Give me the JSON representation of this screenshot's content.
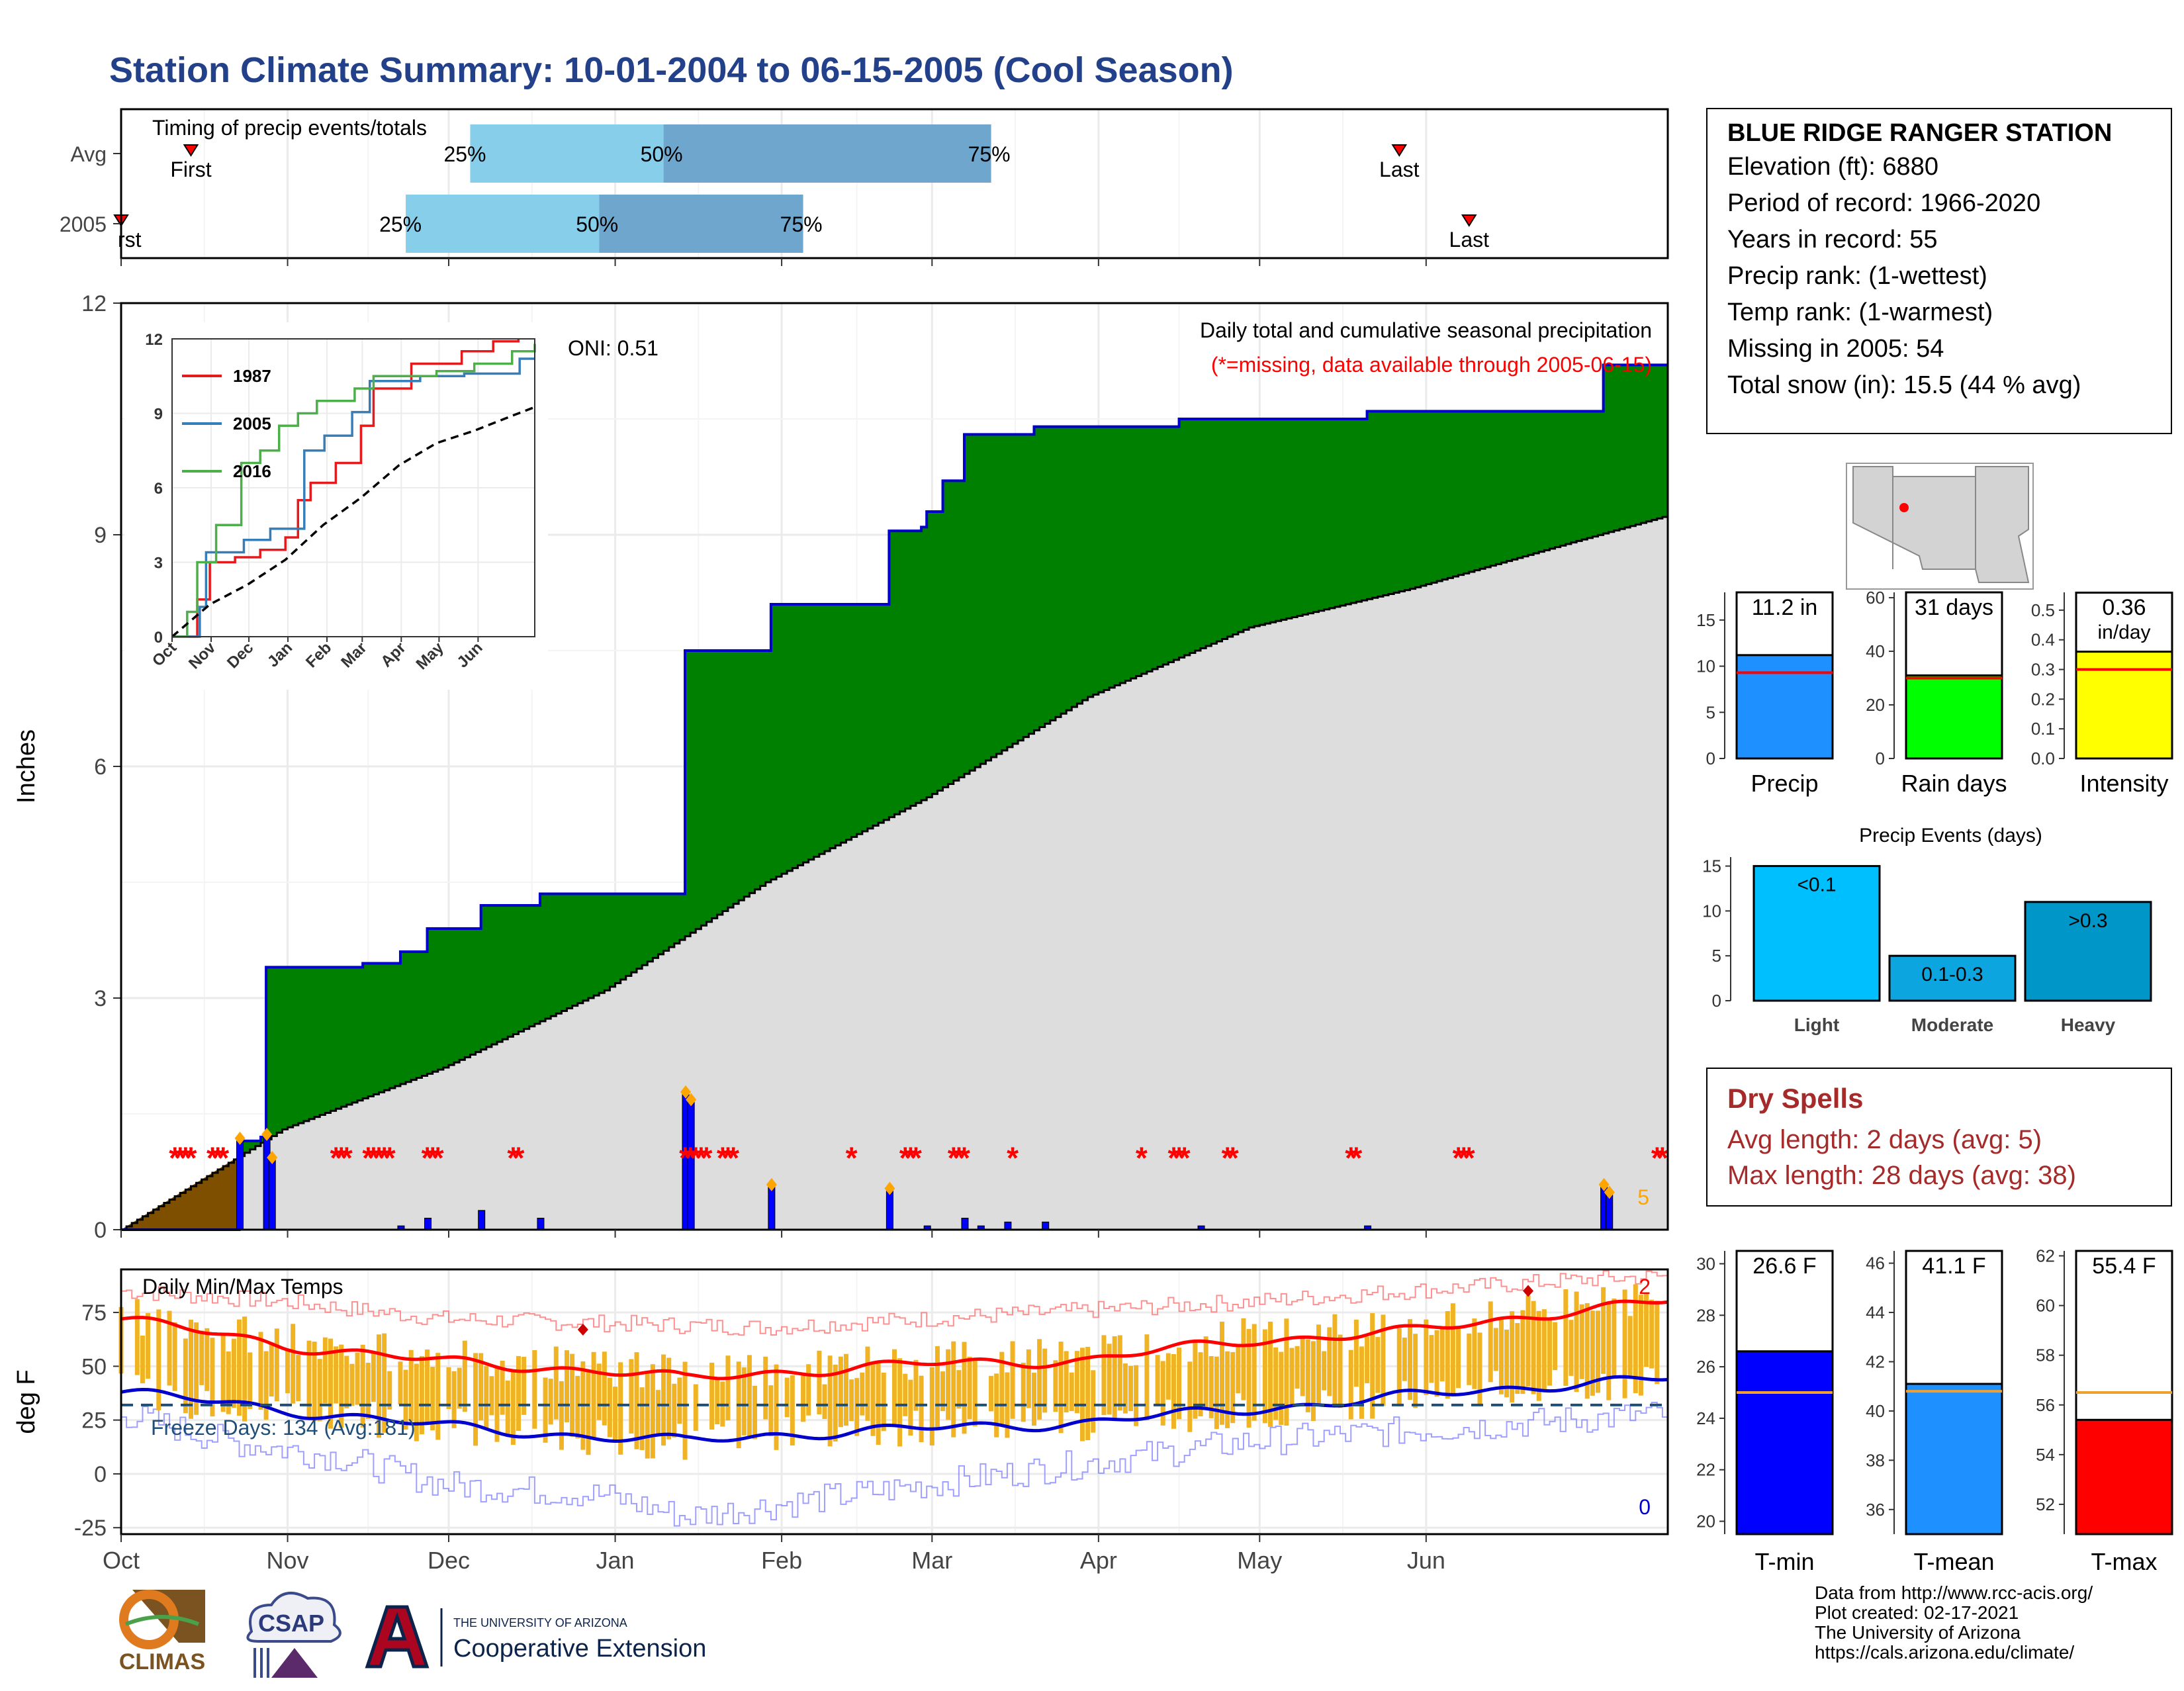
{
  "title": "Station Climate Summary: 10-01-2004 to 06-15-2005 (Cool Season)",
  "station": {
    "name": "BLUE RIDGE RANGER STATION",
    "elevation": "Elevation (ft): 6880",
    "period": "Period of record: 1966-2020",
    "years": "Years in record: 55",
    "precip_rank": "Precip rank:  (1-wettest)",
    "temp_rank": "Temp rank:  (1-warmest)",
    "missing": "Missing in 2005: 54",
    "snow": "Total snow (in): 15.5 (44 % avg)"
  },
  "dry_spells": {
    "title": "Dry Spells",
    "avg": "Avg length: 2 days (avg: 5)",
    "max": "Max length: 28 days (avg: 38)"
  },
  "credits": {
    "line1": "Data from http://www.rcc-acis.org/",
    "line2": "Plot created: 02-17-2021",
    "line3": "The University of Arizona",
    "line4": "https://cals.arizona.edu/climate/"
  },
  "logos": {
    "climas": "CLIMAS",
    "csap": "CSAP",
    "ua_small": "THE UNIVERSITY OF ARIZONA",
    "ua_big": "Cooperative Extension"
  },
  "chart_data": [
    {
      "id": "timing",
      "type": "bar",
      "title": "Timing of precip events/totals",
      "rows": [
        "Avg",
        "2005"
      ],
      "avg": {
        "first": "Oct 14",
        "q25": "Dec 5",
        "q50": "Jan 10",
        "q75": "Mar 12",
        "last": "May 27"
      },
      "y2005": {
        "first": "Oct 1",
        "q25": "Nov 23",
        "q50": "Dec 29",
        "q75": "Feb 5",
        "last": "Jun 9"
      },
      "labels": {
        "first": "First",
        "last": "Last",
        "first_cut": "rst",
        "q25": "25%",
        "q50": "50%",
        "q75": "75%"
      },
      "colors": {
        "light": "#87ceeb",
        "dark": "#6fa6cd",
        "marker": "#ff0000"
      }
    },
    {
      "id": "precip",
      "type": "area",
      "ylabel": "Inches",
      "ylim": [
        0,
        12
      ],
      "yticks": [
        0,
        3,
        6,
        9,
        12
      ],
      "x_months": [
        "Oct",
        "Nov",
        "Dec",
        "Jan",
        "Feb",
        "Mar",
        "Apr",
        "May",
        "Jun"
      ],
      "annotation": "Daily total and cumulative seasonal precipitation",
      "missing_note": "(*=missing, data available through 2005-06-15)",
      "oni": "ONI: 0.51",
      "corner_count": "5",
      "cumulative_2005": [
        [
          0,
          0
        ],
        [
          21,
          0
        ],
        [
          22,
          1.15
        ],
        [
          26,
          1.2
        ],
        [
          27,
          3.4
        ],
        [
          45,
          3.45
        ],
        [
          52,
          3.6
        ],
        [
          57,
          3.9
        ],
        [
          67,
          4.2
        ],
        [
          78,
          4.35
        ],
        [
          104,
          4.35
        ],
        [
          105,
          7.5
        ],
        [
          120,
          7.5
        ],
        [
          121,
          8.1
        ],
        [
          142,
          8.1
        ],
        [
          143,
          9.05
        ],
        [
          149,
          9.1
        ],
        [
          150,
          9.3
        ],
        [
          153,
          9.7
        ],
        [
          157,
          10.3
        ],
        [
          170,
          10.4
        ],
        [
          190,
          10.4
        ],
        [
          197,
          10.5
        ],
        [
          228,
          10.5
        ],
        [
          232,
          10.6
        ],
        [
          270,
          10.6
        ],
        [
          276,
          11.2
        ],
        [
          288,
          11.2
        ]
      ],
      "cumulative_avg": [
        [
          0,
          0
        ],
        [
          30,
          1.3
        ],
        [
          60,
          2.1
        ],
        [
          90,
          3.1
        ],
        [
          120,
          4.5
        ],
        [
          150,
          5.6
        ],
        [
          180,
          6.9
        ],
        [
          210,
          7.8
        ],
        [
          240,
          8.3
        ],
        [
          270,
          8.9
        ],
        [
          288,
          9.25
        ]
      ],
      "daily_2005": [
        [
          22,
          1.15
        ],
        [
          27,
          1.2
        ],
        [
          28,
          0.9
        ],
        [
          52,
          0.05
        ],
        [
          57,
          0.15
        ],
        [
          67,
          0.25
        ],
        [
          78,
          0.15
        ],
        [
          105,
          1.75
        ],
        [
          106,
          1.65
        ],
        [
          121,
          0.55
        ],
        [
          143,
          0.5
        ],
        [
          150,
          0.05
        ],
        [
          157,
          0.15
        ],
        [
          160,
          0.05
        ],
        [
          165,
          0.1
        ],
        [
          172,
          0.1
        ],
        [
          201,
          0.05
        ],
        [
          232,
          0.05
        ],
        [
          276,
          0.55
        ],
        [
          277,
          0.45
        ]
      ],
      "missing_days": [
        10,
        11,
        12,
        13,
        17,
        18,
        19,
        40,
        41,
        42,
        46,
        47,
        48,
        49,
        50,
        57,
        58,
        59,
        73,
        74,
        105,
        106,
        107,
        108,
        109,
        112,
        113,
        114,
        136,
        146,
        147,
        148,
        155,
        156,
        157,
        166,
        190,
        196,
        197,
        198,
        206,
        207,
        229,
        230,
        249,
        250,
        251,
        286,
        287
      ],
      "colors": {
        "above": "#008000",
        "below": "#dddddd",
        "early": "#7f4f00",
        "line": "#0000cd",
        "bars": "#0000ff",
        "missing": "#ff0000"
      },
      "inset": {
        "type": "line",
        "ylim": [
          0,
          12
        ],
        "yticks": [
          0,
          3,
          6,
          9,
          12
        ],
        "x_months": [
          "Oct",
          "Nov",
          "Dec",
          "Jan",
          "Feb",
          "Mar",
          "Apr",
          "May",
          "Jun"
        ],
        "series": [
          {
            "name": "1987",
            "color": "#e41a1c",
            "points": [
              [
                0,
                0
              ],
              [
                20,
                1.5
              ],
              [
                30,
                3.0
              ],
              [
                50,
                3.2
              ],
              [
                70,
                3.5
              ],
              [
                90,
                4.0
              ],
              [
                100,
                5.5
              ],
              [
                110,
                6.2
              ],
              [
                130,
                7.0
              ],
              [
                150,
                8.5
              ],
              [
                160,
                10.0
              ],
              [
                190,
                11.0
              ],
              [
                230,
                11.5
              ],
              [
                255,
                11.9
              ],
              [
                275,
                12.0
              ]
            ]
          },
          {
            "name": "2005",
            "color": "#377eb8",
            "points": [
              [
                0,
                0
              ],
              [
                22,
                1.2
              ],
              [
                27,
                3.4
              ],
              [
                57,
                3.9
              ],
              [
                78,
                4.35
              ],
              [
                105,
                7.5
              ],
              [
                121,
                8.1
              ],
              [
                143,
                9.05
              ],
              [
                157,
                10.3
              ],
              [
                197,
                10.5
              ],
              [
                232,
                10.6
              ],
              [
                276,
                11.2
              ],
              [
                288,
                11.2
              ]
            ]
          },
          {
            "name": "2016",
            "color": "#4daf4a",
            "points": [
              [
                0,
                0
              ],
              [
                12,
                1.0
              ],
              [
                20,
                3.0
              ],
              [
                35,
                4.5
              ],
              [
                55,
                7.0
              ],
              [
                70,
                7.5
              ],
              [
                85,
                8.5
              ],
              [
                100,
                9.0
              ],
              [
                115,
                9.5
              ],
              [
                145,
                10.0
              ],
              [
                160,
                10.5
              ],
              [
                210,
                10.7
              ],
              [
                240,
                11.0
              ],
              [
                270,
                11.5
              ],
              [
                288,
                11.8
              ]
            ]
          },
          {
            "name": "",
            "color": "#000000",
            "dash": true,
            "points": [
              [
                0,
                0
              ],
              [
                30,
                1.3
              ],
              [
                60,
                2.1
              ],
              [
                90,
                3.1
              ],
              [
                120,
                4.5
              ],
              [
                150,
                5.6
              ],
              [
                180,
                6.9
              ],
              [
                210,
                7.8
              ],
              [
                240,
                8.3
              ],
              [
                270,
                8.9
              ],
              [
                288,
                9.25
              ]
            ]
          }
        ]
      }
    },
    {
      "id": "temps",
      "type": "bar",
      "title": "Daily Min/Max Temps",
      "ylabel": "deg F",
      "ylim": [
        -28,
        95
      ],
      "yticks": [
        -25,
        0,
        25,
        50,
        75
      ],
      "x_months": [
        "Oct",
        "Nov",
        "Dec",
        "Jan",
        "Feb",
        "Mar",
        "Apr",
        "May",
        "Jun"
      ],
      "freeze_label": "Freeze Days: 134 (Avg:181)",
      "freeze_line": 32,
      "record_high_count": "2",
      "record_low_count": "0",
      "avg_max": [
        [
          0,
          72
        ],
        [
          30,
          60
        ],
        [
          60,
          52
        ],
        [
          90,
          48
        ],
        [
          105,
          44
        ],
        [
          120,
          47
        ],
        [
          150,
          51
        ],
        [
          180,
          53
        ],
        [
          210,
          62
        ],
        [
          240,
          66
        ],
        [
          270,
          76
        ],
        [
          288,
          80
        ]
      ],
      "avg_min": [
        [
          0,
          38
        ],
        [
          30,
          30
        ],
        [
          60,
          22
        ],
        [
          90,
          17
        ],
        [
          105,
          15
        ],
        [
          120,
          18
        ],
        [
          150,
          21
        ],
        [
          180,
          24
        ],
        [
          210,
          30
        ],
        [
          240,
          36
        ],
        [
          270,
          42
        ],
        [
          288,
          44
        ]
      ],
      "rec_max": [
        [
          0,
          85
        ],
        [
          30,
          80
        ],
        [
          60,
          72
        ],
        [
          90,
          70
        ],
        [
          120,
          68
        ],
        [
          150,
          72
        ],
        [
          180,
          76
        ],
        [
          210,
          80
        ],
        [
          240,
          85
        ],
        [
          270,
          90
        ],
        [
          288,
          92
        ]
      ],
      "rec_min": [
        [
          0,
          28
        ],
        [
          20,
          15
        ],
        [
          40,
          8
        ],
        [
          60,
          -5
        ],
        [
          90,
          -10
        ],
        [
          105,
          -20
        ],
        [
          120,
          -15
        ],
        [
          150,
          -5
        ],
        [
          180,
          5
        ],
        [
          210,
          15
        ],
        [
          240,
          20
        ],
        [
          270,
          25
        ],
        [
          288,
          28
        ]
      ],
      "colors": {
        "bars": "#f0b323",
        "max": "#ff0000",
        "min": "#0000cd",
        "freeze": "#1f4e79"
      }
    },
    {
      "id": "summary_precip",
      "type": "bar",
      "panels": [
        {
          "label": "Precip",
          "value": 11.2,
          "avg": 9.3,
          "text": "11.2 in",
          "ylim": [
            0,
            18
          ],
          "yticks": [
            0,
            5,
            10,
            15
          ],
          "color": "#1e90ff"
        },
        {
          "label": "Rain days",
          "value": 31,
          "avg": 30,
          "text": "31 days",
          "ylim": [
            0,
            62
          ],
          "yticks": [
            0,
            20,
            40,
            60
          ],
          "color": "#00ff00"
        },
        {
          "label": "Intensity",
          "value": 0.36,
          "avg": 0.3,
          "text": "0.36",
          "text2": "in/day",
          "ylim": [
            0,
            0.56
          ],
          "yticks": [
            0.0,
            0.1,
            0.2,
            0.3,
            0.4,
            0.5
          ],
          "color": "#ffff00"
        }
      ]
    },
    {
      "id": "precip_events",
      "type": "bar",
      "title": "Precip Events (days)",
      "categories": [
        "Light",
        "Moderate",
        "Heavy"
      ],
      "bar_labels": [
        "<0.1",
        "0.1-0.3",
        ">0.3"
      ],
      "values": [
        15,
        5,
        11
      ],
      "ylim": [
        0,
        16
      ],
      "yticks": [
        0,
        5,
        10,
        15
      ],
      "colors": [
        "#00bfff",
        "#0ca5e0",
        "#0096c8"
      ]
    },
    {
      "id": "summary_temp",
      "type": "bar",
      "panels": [
        {
          "label": "T-min",
          "value": 26.6,
          "avg": 25.0,
          "text": "26.6 F",
          "ylim": [
            19.5,
            30.5
          ],
          "yticks": [
            20,
            22,
            24,
            26,
            28,
            30
          ],
          "color": "#0000ff"
        },
        {
          "label": "T-mean",
          "value": 41.1,
          "avg": 40.8,
          "text": "41.1 F",
          "ylim": [
            35.0,
            46.5
          ],
          "yticks": [
            36,
            38,
            40,
            42,
            44,
            46
          ],
          "color": "#1e90ff"
        },
        {
          "label": "T-max",
          "value": 55.4,
          "avg": 56.5,
          "text": "55.4 F",
          "ylim": [
            50.8,
            62.2
          ],
          "yticks": [
            52,
            54,
            56,
            58,
            60,
            62
          ],
          "color": "#ff0000"
        }
      ]
    }
  ]
}
